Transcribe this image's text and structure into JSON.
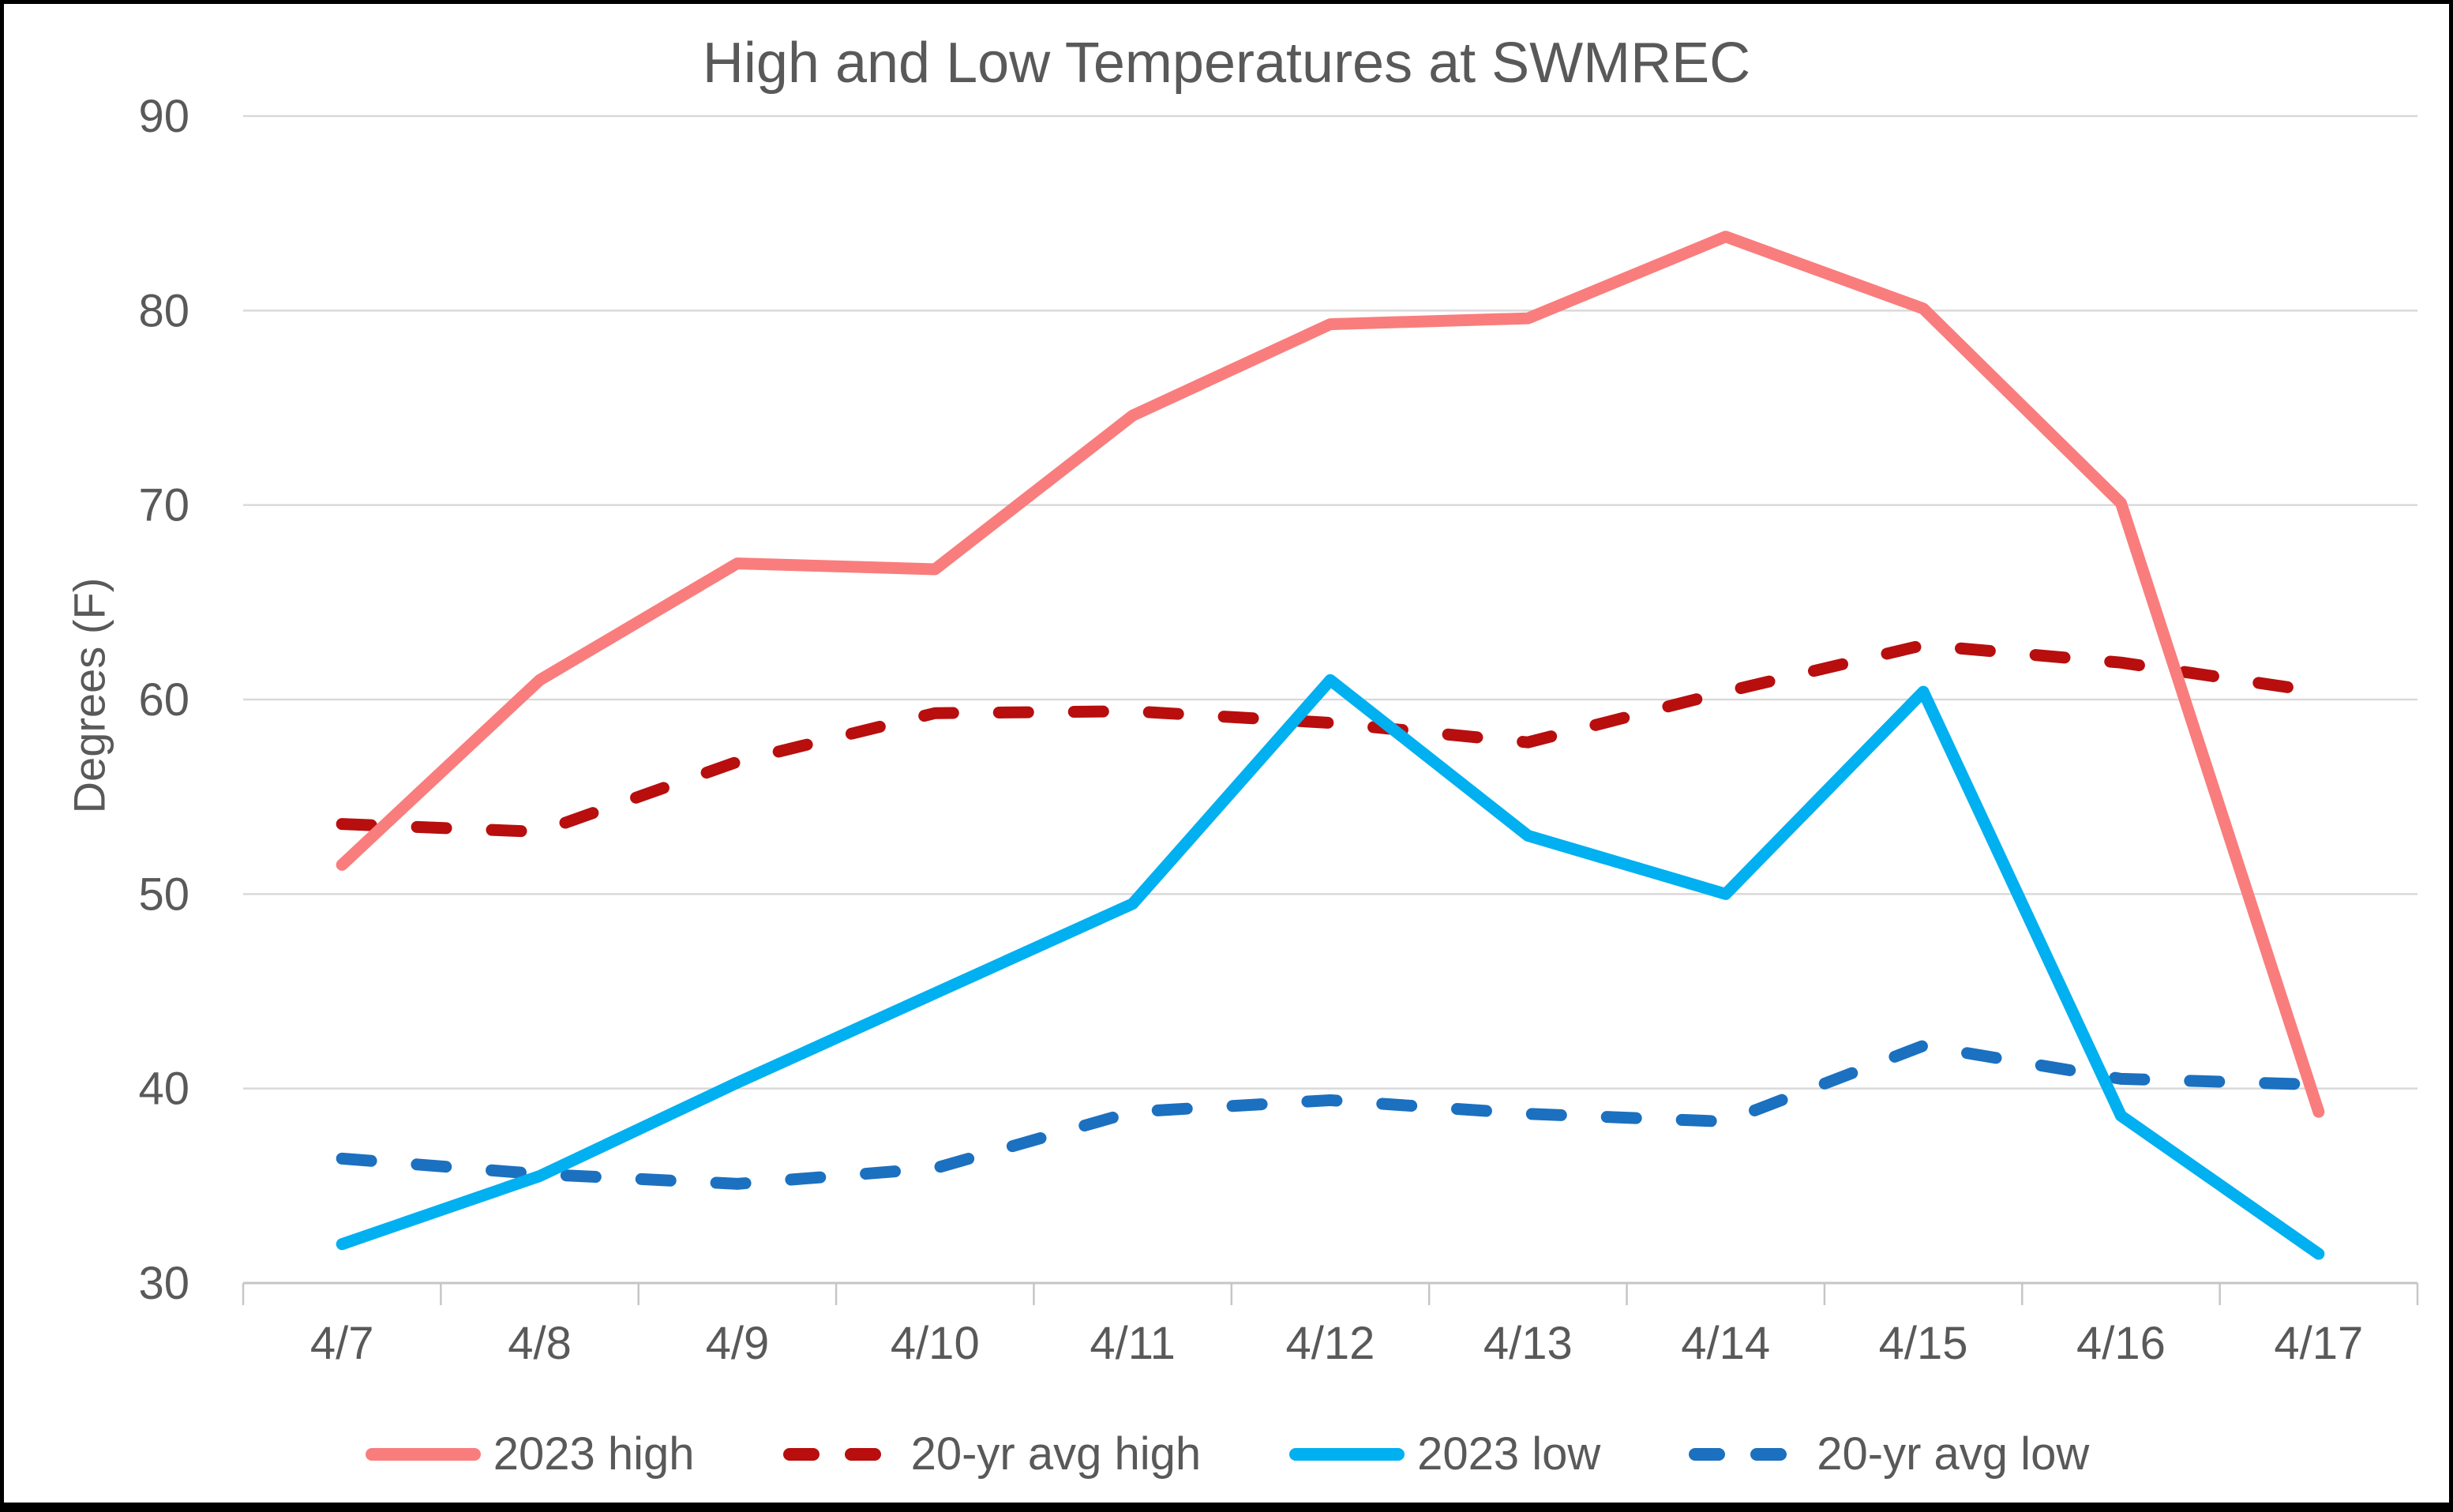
{
  "window": {
    "background_color": "#ffffff",
    "border_color": "#000000"
  },
  "chart_data": {
    "type": "line",
    "title": "High and Low Temperatures at SWMREC",
    "xlabel": "",
    "ylabel": "Degrees (F)",
    "categories": [
      "4/7",
      "4/8",
      "4/9",
      "4/10",
      "4/11",
      "4/12",
      "4/13",
      "4/14",
      "4/15",
      "4/16",
      "4/17"
    ],
    "series": [
      {
        "name": "2023 high",
        "color": "#F97D7D",
        "style": "solid",
        "values": [
          51.5,
          61.0,
          67.0,
          66.7,
          74.6,
          79.3,
          79.6,
          83.8,
          80.1,
          70.1,
          38.8
        ]
      },
      {
        "name": "20-yr avg high",
        "color": "#B80E0E",
        "style": "dashed",
        "values": [
          53.6,
          53.2,
          56.8,
          59.3,
          59.4,
          58.8,
          57.8,
          60.4,
          62.8,
          61.9,
          60.4
        ]
      },
      {
        "name": "2023 low",
        "color": "#00B0F0",
        "style": "solid",
        "values": [
          32.0,
          35.5,
          40.3,
          44.9,
          49.5,
          61.0,
          53.0,
          50.0,
          60.4,
          38.6,
          31.5
        ]
      },
      {
        "name": "20-yr avg low",
        "color": "#1B70C0",
        "style": "dashed",
        "values": [
          36.4,
          35.6,
          35.1,
          35.9,
          38.8,
          39.4,
          38.7,
          38.3,
          42.2,
          40.5,
          40.2
        ]
      }
    ],
    "render_order": [
      1,
      0,
      3,
      2
    ],
    "ylim": [
      30,
      90
    ],
    "yticks": [
      30,
      40,
      50,
      60,
      70,
      80,
      90
    ],
    "grid": true,
    "legend_position": "bottom",
    "text_color": "#595959",
    "gridline_color": "#D9D9D9",
    "axis_line_color": "#C6C6C6"
  }
}
